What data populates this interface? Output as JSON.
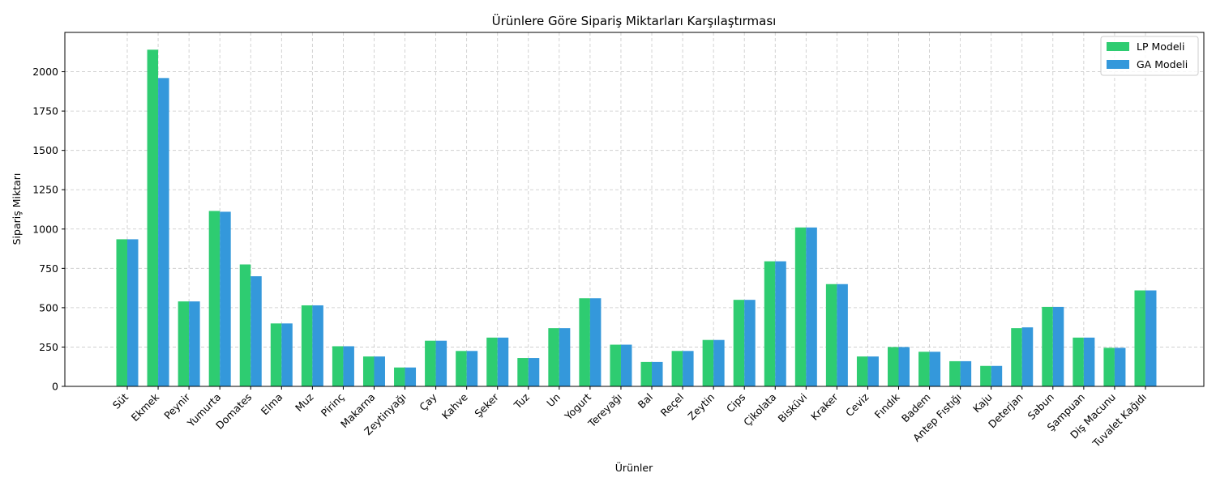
{
  "chart_data": {
    "type": "bar",
    "title": "Ürünlere Göre Sipariş Miktarları Karşılaştırması",
    "xlabel": "Ürünler",
    "ylabel": "Sipariş Miktarı",
    "ylim": [
      0,
      2250
    ],
    "yticks": [
      0,
      250,
      500,
      750,
      1000,
      1250,
      1500,
      1750,
      2000
    ],
    "grid": true,
    "legend_position": "top-right",
    "categories": [
      "Süt",
      "Ekmek",
      "Peynir",
      "Yumurta",
      "Domates",
      "Elma",
      "Muz",
      "Pirinç",
      "Makarna",
      "Zeytinyağı",
      "Çay",
      "Kahve",
      "Şeker",
      "Tuz",
      "Un",
      "Yogurt",
      "Tereyağı",
      "Bal",
      "Reçel",
      "Zeytin",
      "Cips",
      "Çikolata",
      "Bisküvi",
      "Kraker",
      "Ceviz",
      "Fındık",
      "Badem",
      "Antep Fıstığı",
      "Kaju",
      "Deterjan",
      "Sabun",
      "Şampuan",
      "Diş Macunu",
      "Tuvalet Kağıdı"
    ],
    "series": [
      {
        "name": "LP Modeli",
        "color": "#2ecc71",
        "values": [
          935,
          2140,
          540,
          1115,
          775,
          400,
          515,
          255,
          190,
          120,
          290,
          225,
          310,
          180,
          370,
          560,
          265,
          155,
          225,
          295,
          550,
          795,
          1010,
          650,
          190,
          250,
          220,
          160,
          130,
          370,
          505,
          310,
          245,
          610
        ]
      },
      {
        "name": "GA Modeli",
        "color": "#3498db",
        "values": [
          935,
          1960,
          540,
          1110,
          700,
          400,
          515,
          255,
          190,
          120,
          290,
          225,
          310,
          180,
          370,
          560,
          265,
          155,
          225,
          295,
          550,
          795,
          1010,
          650,
          190,
          250,
          220,
          160,
          130,
          375,
          505,
          310,
          245,
          610
        ]
      }
    ]
  }
}
